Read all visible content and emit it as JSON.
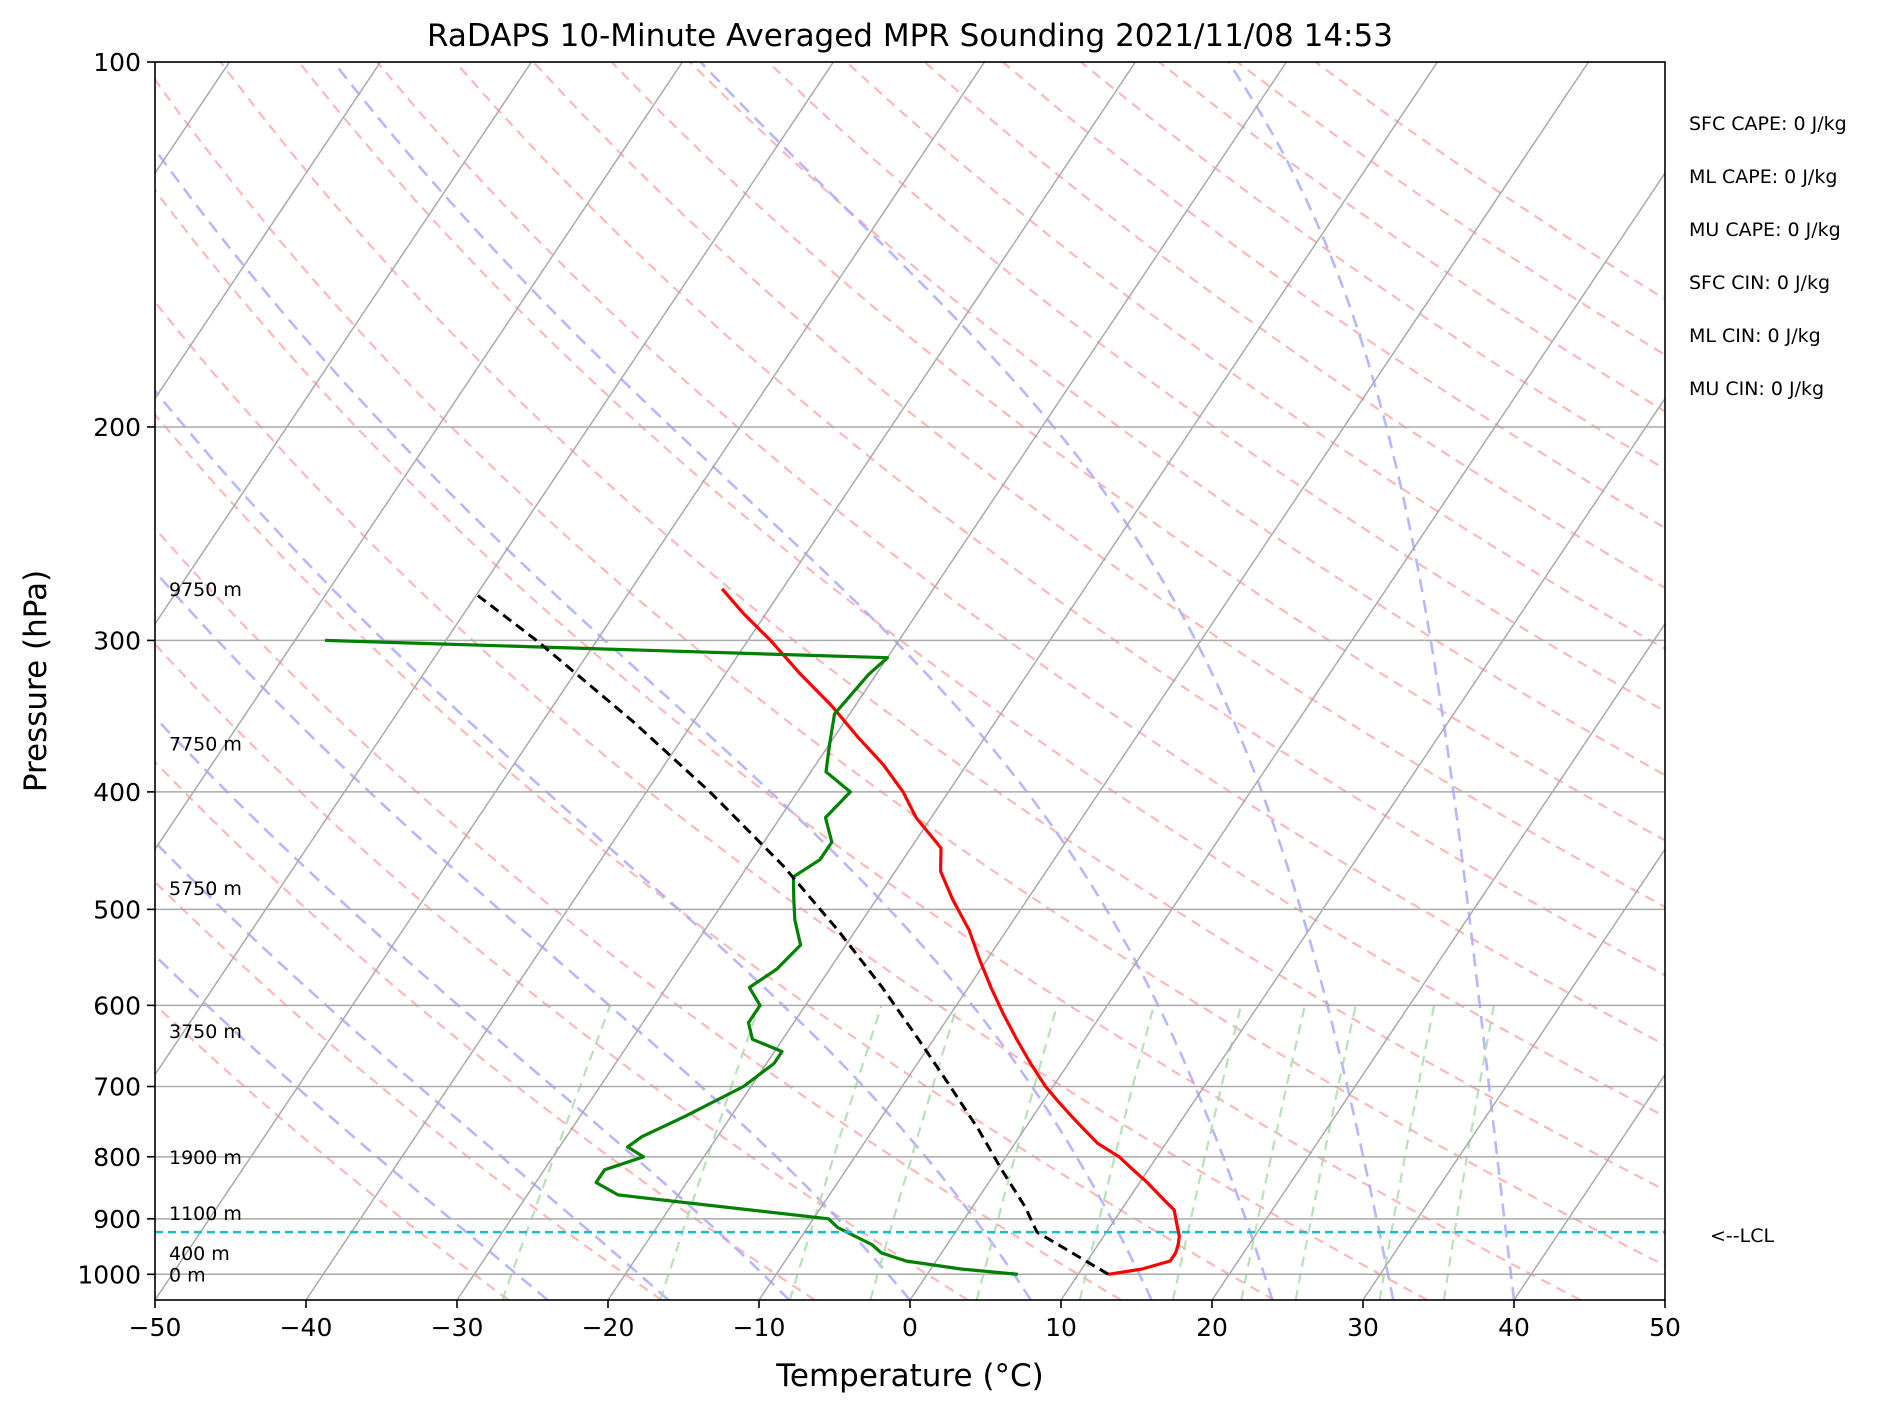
{
  "chart_data": {
    "type": "line",
    "title": "RaDAPS 10-Minute Averaged MPR Sounding 2021/11/08 14:53",
    "xlabel": "Temperature (°C)",
    "ylabel": "Pressure (hPa)",
    "xlim": [
      -50,
      50
    ],
    "ylim": [
      1050,
      100
    ],
    "y_scale": "log",
    "skew": true,
    "grid": true,
    "x_ticks": [
      -50,
      -40,
      -30,
      -20,
      -10,
      0,
      10,
      20,
      30,
      40,
      50
    ],
    "x_tick_labels": [
      "−50",
      "−40",
      "−30",
      "−20",
      "−10",
      "0",
      "10",
      "20",
      "30",
      "40",
      "50"
    ],
    "y_ticks": [
      1000,
      900,
      800,
      700,
      600,
      500,
      400,
      300,
      200,
      100
    ],
    "y_tick_labels": [
      "1000",
      "900",
      "800",
      "700",
      "600",
      "500",
      "400",
      "300",
      "200",
      "100"
    ],
    "series": [
      {
        "role": "temperature",
        "color": "#ff0000",
        "style": "solid",
        "pressure": [
          1000,
          990,
          975,
          960,
          945,
          930,
          915,
          900,
          885,
          870,
          855,
          840,
          820,
          800,
          780,
          760,
          740,
          720,
          700,
          670,
          640,
          610,
          580,
          550,
          520,
          490,
          465,
          445,
          420,
          400,
          380,
          360,
          340,
          320,
          300,
          285,
          272
        ],
        "temperature": [
          12.0,
          14.0,
          15.5,
          15.5,
          15.3,
          15.0,
          14.5,
          14.0,
          13.5,
          12.5,
          11.5,
          10.5,
          9.0,
          7.5,
          5.5,
          4.0,
          2.5,
          1.0,
          -0.5,
          -2.5,
          -4.5,
          -6.5,
          -8.5,
          -10.5,
          -12.5,
          -15.0,
          -17.0,
          -18.0,
          -21.0,
          -23.0,
          -25.5,
          -28.5,
          -31.5,
          -35.0,
          -38.5,
          -41.5,
          -44.0
        ]
      },
      {
        "role": "dewpoint",
        "color": "#008000",
        "style": "solid",
        "pressure": [
          1000,
          990,
          975,
          960,
          945,
          930,
          915,
          900,
          860,
          840,
          820,
          800,
          785,
          770,
          740,
          700,
          670,
          655,
          640,
          620,
          600,
          580,
          560,
          535,
          510,
          490,
          470,
          455,
          440,
          420,
          400,
          385,
          365,
          345,
          320,
          310,
          300
        ],
        "temperature": [
          6.0,
          2.0,
          -2.0,
          -4.0,
          -5.0,
          -6.5,
          -8.0,
          -9.0,
          -24.0,
          -26.0,
          -26.0,
          -24.0,
          -25.5,
          -25.0,
          -23.0,
          -20.5,
          -19.5,
          -19.5,
          -22.0,
          -23.0,
          -23.0,
          -24.5,
          -23.5,
          -23.0,
          -24.5,
          -25.5,
          -26.5,
          -25.5,
          -25.5,
          -27.0,
          -26.5,
          -29.0,
          -30.0,
          -31.0,
          -30.5,
          -30.0,
          -68.0
        ]
      },
      {
        "role": "parcel",
        "color": "#000000",
        "style": "dashed",
        "pressure": [
          1000,
          923,
          880,
          820,
          760,
          700,
          640,
          580,
          520,
          460,
          400,
          350,
          300,
          275
        ],
        "temperature": [
          12.0,
          5.4,
          3.5,
          0.3,
          -3.0,
          -6.8,
          -11.0,
          -15.7,
          -21.2,
          -27.7,
          -35.8,
          -44.0,
          -54.0,
          -60.0
        ]
      }
    ],
    "lcl": {
      "pressure": 923,
      "label": "<--LCL",
      "color": "#17becf"
    },
    "height_labels": [
      {
        "pressure": 1000,
        "label": "0 m"
      },
      {
        "pressure": 960,
        "label": "400 m"
      },
      {
        "pressure": 890,
        "label": "1100 m"
      },
      {
        "pressure": 800,
        "label": "1900 m"
      },
      {
        "pressure": 630,
        "label": "3750 m"
      },
      {
        "pressure": 480,
        "label": "5750 m"
      },
      {
        "pressure": 365,
        "label": "7750 m"
      },
      {
        "pressure": 272,
        "label": "9750 m"
      }
    ],
    "indices": [
      {
        "label": "SFC CAPE: 0 J/kg"
      },
      {
        "label": "ML CAPE: 0 J/kg"
      },
      {
        "label": "MU CAPE: 0 J/kg"
      },
      {
        "label": "SFC CIN: 0 J/kg"
      },
      {
        "label": "ML CIN: 0 J/kg"
      },
      {
        "label": "MU CIN: 0 J/kg"
      }
    ],
    "background_lines": {
      "isotherm_color": "#aaaaaa",
      "dry_adiabat_color": "#ffaaaa",
      "moist_adiabat_color": "#aaaaff",
      "mixing_ratio_color": "#aaddaa"
    }
  }
}
